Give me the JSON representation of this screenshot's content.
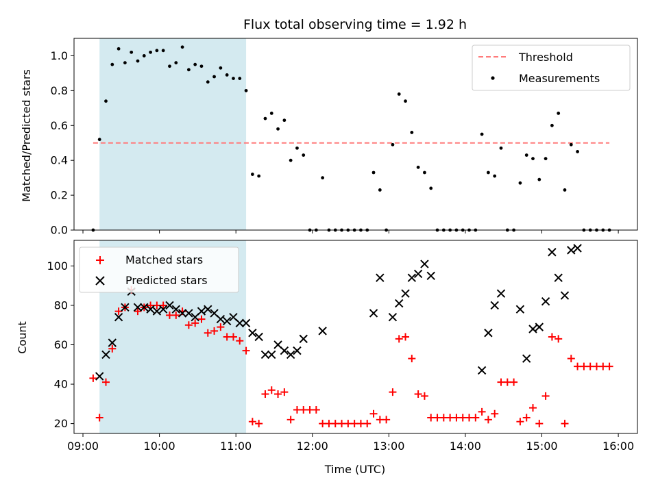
{
  "chart_data": {
    "type": "scatter",
    "title": "Flux total observing time = 1.92 h",
    "xlabel": "Time (UTC)",
    "x_ticks": [
      "09:00",
      "10:00",
      "11:00",
      "12:00",
      "13:00",
      "14:00",
      "15:00",
      "16:00"
    ],
    "xlim": [
      "08:53",
      "16:15"
    ],
    "shaded_interval": {
      "start": "09:13",
      "end": "11:08",
      "color": "#d4eaf0"
    },
    "grid": false,
    "panels": [
      {
        "name": "ratio",
        "ylabel": "Matched/Predicted stars",
        "ylim": [
          0,
          1.1
        ],
        "y_ticks": [
          "0.0",
          "0.2",
          "0.4",
          "0.6",
          "0.8",
          "1.0"
        ],
        "legend_position": "top-right",
        "threshold": {
          "name": "Threshold",
          "value": 0.5,
          "from": "09:08",
          "to": "15:53",
          "color": "#ff7b7b"
        },
        "series": [
          {
            "name": "Measurements",
            "marker": "dot",
            "color": "#000000",
            "points": [
              [
                "09:08",
                0.0
              ],
              [
                "09:13",
                0.52
              ],
              [
                "09:18",
                0.74
              ],
              [
                "09:23",
                0.95
              ],
              [
                "09:28",
                1.04
              ],
              [
                "09:33",
                0.96
              ],
              [
                "09:38",
                1.02
              ],
              [
                "09:43",
                0.97
              ],
              [
                "09:48",
                1.0
              ],
              [
                "09:53",
                1.02
              ],
              [
                "09:58",
                1.03
              ],
              [
                "10:03",
                1.03
              ],
              [
                "10:08",
                0.94
              ],
              [
                "10:13",
                0.96
              ],
              [
                "10:18",
                1.05
              ],
              [
                "10:23",
                0.92
              ],
              [
                "10:28",
                0.95
              ],
              [
                "10:33",
                0.94
              ],
              [
                "10:38",
                0.85
              ],
              [
                "10:43",
                0.88
              ],
              [
                "10:48",
                0.93
              ],
              [
                "10:53",
                0.89
              ],
              [
                "10:58",
                0.87
              ],
              [
                "11:03",
                0.87
              ],
              [
                "11:08",
                0.8
              ],
              [
                "11:13",
                0.32
              ],
              [
                "11:18",
                0.31
              ],
              [
                "11:23",
                0.64
              ],
              [
                "11:28",
                0.67
              ],
              [
                "11:33",
                0.58
              ],
              [
                "11:38",
                0.63
              ],
              [
                "11:43",
                0.4
              ],
              [
                "11:48",
                0.47
              ],
              [
                "11:53",
                0.43
              ],
              [
                "11:58",
                0.0
              ],
              [
                "12:03",
                0.0
              ],
              [
                "12:08",
                0.3
              ],
              [
                "12:13",
                0.0
              ],
              [
                "12:18",
                0.0
              ],
              [
                "12:23",
                0.0
              ],
              [
                "12:28",
                0.0
              ],
              [
                "12:33",
                0.0
              ],
              [
                "12:38",
                0.0
              ],
              [
                "12:43",
                0.0
              ],
              [
                "12:48",
                0.33
              ],
              [
                "12:53",
                0.23
              ],
              [
                "12:58",
                0.0
              ],
              [
                "13:03",
                0.49
              ],
              [
                "13:08",
                0.78
              ],
              [
                "13:13",
                0.74
              ],
              [
                "13:18",
                0.56
              ],
              [
                "13:23",
                0.36
              ],
              [
                "13:28",
                0.33
              ],
              [
                "13:33",
                0.24
              ],
              [
                "13:38",
                0.0
              ],
              [
                "13:43",
                0.0
              ],
              [
                "13:48",
                0.0
              ],
              [
                "13:53",
                0.0
              ],
              [
                "13:58",
                0.0
              ],
              [
                "14:03",
                0.0
              ],
              [
                "14:08",
                0.0
              ],
              [
                "14:13",
                0.55
              ],
              [
                "14:18",
                0.33
              ],
              [
                "14:23",
                0.31
              ],
              [
                "14:28",
                0.47
              ],
              [
                "14:33",
                0.0
              ],
              [
                "14:38",
                0.0
              ],
              [
                "14:43",
                0.27
              ],
              [
                "14:48",
                0.43
              ],
              [
                "14:53",
                0.41
              ],
              [
                "14:58",
                0.29
              ],
              [
                "15:03",
                0.41
              ],
              [
                "15:08",
                0.6
              ],
              [
                "15:13",
                0.67
              ],
              [
                "15:18",
                0.23
              ],
              [
                "15:23",
                0.49
              ],
              [
                "15:28",
                0.45
              ],
              [
                "15:33",
                0.0
              ],
              [
                "15:38",
                0.0
              ],
              [
                "15:43",
                0.0
              ],
              [
                "15:48",
                0.0
              ],
              [
                "15:53",
                0.0
              ]
            ]
          }
        ]
      },
      {
        "name": "counts",
        "ylabel": "Count",
        "ylim": [
          15,
          113
        ],
        "y_ticks": [
          "20",
          "40",
          "60",
          "80",
          "100"
        ],
        "legend_position": "top-left",
        "series": [
          {
            "name": "Matched stars",
            "marker": "plus",
            "color": "#ff0000",
            "points": [
              [
                "09:08",
                43
              ],
              [
                "09:13",
                23
              ],
              [
                "09:18",
                41
              ],
              [
                "09:23",
                58
              ],
              [
                "09:28",
                77
              ],
              [
                "09:33",
                79
              ],
              [
                "09:38",
                88
              ],
              [
                "09:43",
                77
              ],
              [
                "09:48",
                79
              ],
              [
                "09:53",
                80
              ],
              [
                "09:58",
                80
              ],
              [
                "10:03",
                80
              ],
              [
                "10:08",
                75
              ],
              [
                "10:13",
                75
              ],
              [
                "10:18",
                77
              ],
              [
                "10:23",
                70
              ],
              [
                "10:28",
                71
              ],
              [
                "10:33",
                73
              ],
              [
                "10:38",
                66
              ],
              [
                "10:43",
                67
              ],
              [
                "10:48",
                69
              ],
              [
                "10:53",
                64
              ],
              [
                "10:58",
                64
              ],
              [
                "11:03",
                62
              ],
              [
                "11:08",
                57
              ],
              [
                "11:13",
                21
              ],
              [
                "11:18",
                20
              ],
              [
                "11:23",
                35
              ],
              [
                "11:28",
                37
              ],
              [
                "11:33",
                35
              ],
              [
                "11:38",
                36
              ],
              [
                "11:43",
                22
              ],
              [
                "11:48",
                27
              ],
              [
                "11:53",
                27
              ],
              [
                "11:58",
                27
              ],
              [
                "12:03",
                27
              ],
              [
                "12:08",
                20
              ],
              [
                "12:13",
                20
              ],
              [
                "12:18",
                20
              ],
              [
                "12:23",
                20
              ],
              [
                "12:28",
                20
              ],
              [
                "12:33",
                20
              ],
              [
                "12:38",
                20
              ],
              [
                "12:43",
                20
              ],
              [
                "12:48",
                25
              ],
              [
                "12:53",
                22
              ],
              [
                "12:58",
                22
              ],
              [
                "13:03",
                36
              ],
              [
                "13:08",
                63
              ],
              [
                "13:13",
                64
              ],
              [
                "13:18",
                53
              ],
              [
                "13:23",
                35
              ],
              [
                "13:28",
                34
              ],
              [
                "13:33",
                23
              ],
              [
                "13:38",
                23
              ],
              [
                "13:43",
                23
              ],
              [
                "13:48",
                23
              ],
              [
                "13:53",
                23
              ],
              [
                "13:58",
                23
              ],
              [
                "14:03",
                23
              ],
              [
                "14:08",
                23
              ],
              [
                "14:13",
                26
              ],
              [
                "14:18",
                22
              ],
              [
                "14:23",
                25
              ],
              [
                "14:28",
                41
              ],
              [
                "14:33",
                41
              ],
              [
                "14:38",
                41
              ],
              [
                "14:43",
                21
              ],
              [
                "14:48",
                23
              ],
              [
                "14:53",
                28
              ],
              [
                "14:58",
                20
              ],
              [
                "15:03",
                34
              ],
              [
                "15:08",
                64
              ],
              [
                "15:13",
                63
              ],
              [
                "15:18",
                20
              ],
              [
                "15:23",
                53
              ],
              [
                "15:28",
                49
              ],
              [
                "15:33",
                49
              ],
              [
                "15:38",
                49
              ],
              [
                "15:43",
                49
              ],
              [
                "15:48",
                49
              ],
              [
                "15:53",
                49
              ]
            ]
          },
          {
            "name": "Predicted stars",
            "marker": "x",
            "color": "#000000",
            "points": [
              [
                "09:13",
                44
              ],
              [
                "09:18",
                55
              ],
              [
                "09:23",
                61
              ],
              [
                "09:28",
                74
              ],
              [
                "09:33",
                79
              ],
              [
                "09:38",
                87
              ],
              [
                "09:43",
                79
              ],
              [
                "09:48",
                79
              ],
              [
                "09:53",
                78
              ],
              [
                "09:58",
                77
              ],
              [
                "10:03",
                78
              ],
              [
                "10:08",
                80
              ],
              [
                "10:13",
                78
              ],
              [
                "10:18",
                76
              ],
              [
                "10:23",
                76
              ],
              [
                "10:28",
                74
              ],
              [
                "10:33",
                77
              ],
              [
                "10:38",
                78
              ],
              [
                "10:43",
                76
              ],
              [
                "10:48",
                73
              ],
              [
                "10:53",
                72
              ],
              [
                "10:58",
                74
              ],
              [
                "11:03",
                71
              ],
              [
                "11:08",
                71
              ],
              [
                "11:13",
                66
              ],
              [
                "11:18",
                64
              ],
              [
                "11:23",
                55
              ],
              [
                "11:28",
                55
              ],
              [
                "11:33",
                60
              ],
              [
                "11:38",
                57
              ],
              [
                "11:43",
                55
              ],
              [
                "11:48",
                57
              ],
              [
                "11:53",
                63
              ],
              [
                "12:08",
                67
              ],
              [
                "12:48",
                76
              ],
              [
                "12:53",
                94
              ],
              [
                "13:03",
                74
              ],
              [
                "13:08",
                81
              ],
              [
                "13:13",
                86
              ],
              [
                "13:18",
                94
              ],
              [
                "13:23",
                96
              ],
              [
                "13:28",
                101
              ],
              [
                "13:33",
                95
              ],
              [
                "14:13",
                47
              ],
              [
                "14:18",
                66
              ],
              [
                "14:23",
                80
              ],
              [
                "14:28",
                86
              ],
              [
                "14:43",
                78
              ],
              [
                "14:48",
                53
              ],
              [
                "14:53",
                68
              ],
              [
                "14:58",
                69
              ],
              [
                "15:03",
                82
              ],
              [
                "15:08",
                107
              ],
              [
                "15:13",
                94
              ],
              [
                "15:18",
                85
              ],
              [
                "15:23",
                108
              ],
              [
                "15:28",
                109
              ]
            ]
          }
        ]
      }
    ]
  }
}
